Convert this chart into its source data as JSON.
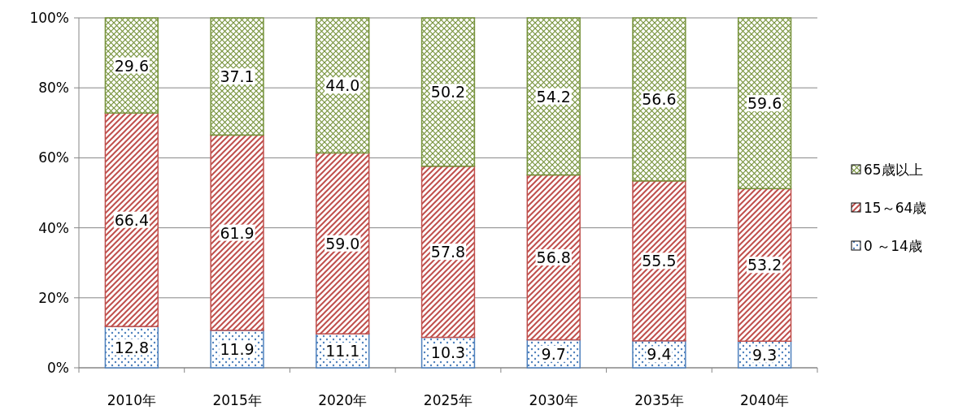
{
  "chart_data": {
    "type": "bar",
    "stacked": true,
    "categories": [
      "2010年",
      "2015年",
      "2020年",
      "2025年",
      "2030年",
      "2035年",
      "2040年"
    ],
    "series": [
      {
        "name": "0 ～14歳",
        "color": "#4f81bd",
        "values": [
          11.8,
          10.7,
          9.7,
          8.7,
          8.0,
          7.7,
          7.6
        ]
      },
      {
        "name": "15～64歳",
        "color": "#c0504d",
        "values": [
          61.0,
          55.8,
          51.7,
          48.9,
          47.1,
          45.7,
          43.6
        ]
      },
      {
        "name": "65歳以上",
        "color": "#77933c",
        "values": [
          27.2,
          33.5,
          38.6,
          42.4,
          44.9,
          46.6,
          48.8
        ]
      }
    ],
    "annotations": [
      "12.8",
      "11.9",
      "11.1",
      "10.3",
      "9.7",
      "9.4",
      "9.3",
      "66.4",
      "61.9",
      "59.0",
      "57.8",
      "56.8",
      "55.5",
      "53.2",
      "29.6",
      "37.1",
      "44.0",
      "50.2",
      "54.2",
      "56.6",
      "59.6"
    ],
    "ylim": [
      0,
      100
    ],
    "yticks": [
      {
        "value": 0,
        "label": "0%"
      },
      {
        "value": 20,
        "label": "20%"
      },
      {
        "value": 40,
        "label": "40%"
      },
      {
        "value": 60,
        "label": "60%"
      },
      {
        "value": 80,
        "label": "80%"
      },
      {
        "value": 100,
        "label": "100%"
      }
    ],
    "grid": "y",
    "legend": "right"
  }
}
